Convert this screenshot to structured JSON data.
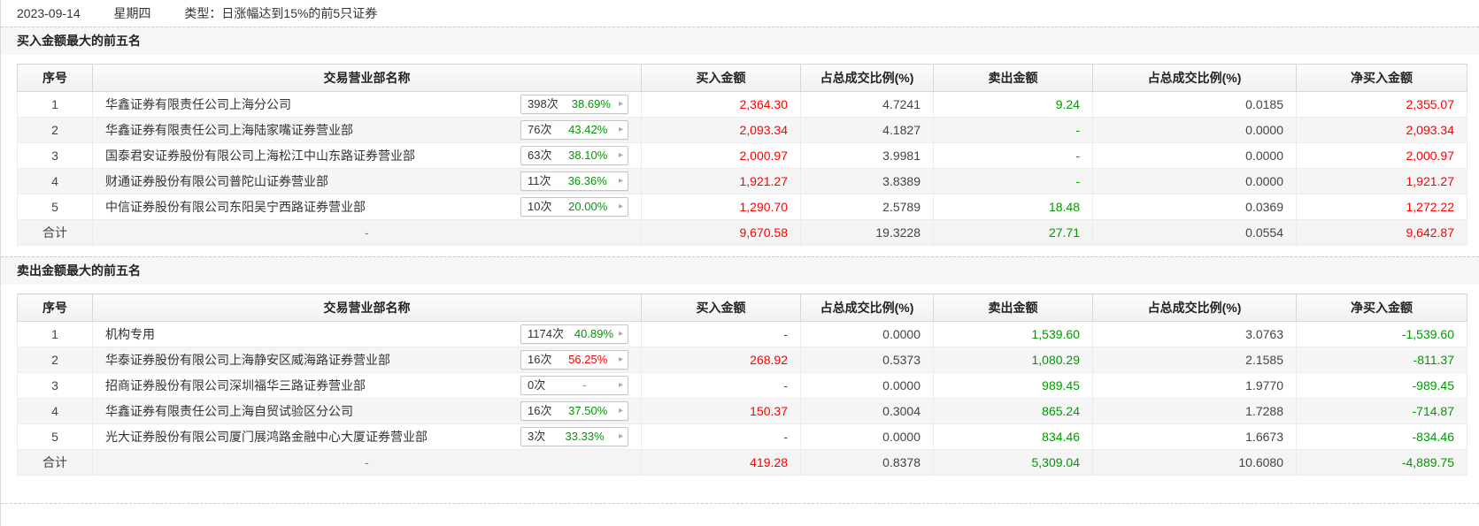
{
  "topbar": {
    "date": "2023-09-14",
    "weekday": "星期四",
    "type_text": "类型：日涨幅达到15%的前5只证券"
  },
  "columns": [
    "序号",
    "交易营业部名称",
    "买入金额",
    "占总成交比例(%)",
    "卖出金额",
    "占总成交比例(%)",
    "净买入金额"
  ],
  "total_label": "合计",
  "badge_arrow_icon": "▸",
  "colors": {
    "red": "#ff0000",
    "green": "#009900",
    "dark": "#444444",
    "gray": "#888888"
  },
  "tables": [
    {
      "title": "买入金额最大的前五名",
      "rows": [
        {
          "rank": "1",
          "name": "华鑫证券有限责任公司上海分公司",
          "count": "398次",
          "rate": "38.69%",
          "rate_color": "green",
          "values": [
            {
              "text": "2,364.30",
              "color": "red"
            },
            {
              "text": "4.7241",
              "color": "dark"
            },
            {
              "text": "9.24",
              "color": "green"
            },
            {
              "text": "0.0185",
              "color": "dark"
            },
            {
              "text": "2,355.07",
              "color": "red"
            }
          ]
        },
        {
          "rank": "2",
          "name": "华鑫证券有限责任公司上海陆家嘴证券营业部",
          "count": "76次",
          "rate": "43.42%",
          "rate_color": "green",
          "values": [
            {
              "text": "2,093.34",
              "color": "red"
            },
            {
              "text": "4.1827",
              "color": "dark"
            },
            {
              "text": "-",
              "color": "green"
            },
            {
              "text": "0.0000",
              "color": "dark"
            },
            {
              "text": "2,093.34",
              "color": "red"
            }
          ]
        },
        {
          "rank": "3",
          "name": "国泰君安证券股份有限公司上海松江中山东路证券营业部",
          "count": "63次",
          "rate": "38.10%",
          "rate_color": "green",
          "values": [
            {
              "text": "2,000.97",
              "color": "red"
            },
            {
              "text": "3.9981",
              "color": "dark"
            },
            {
              "text": "-",
              "color": "green"
            },
            {
              "text": "0.0000",
              "color": "dark"
            },
            {
              "text": "2,000.97",
              "color": "red"
            }
          ]
        },
        {
          "rank": "4",
          "name": "财通证券股份有限公司普陀山证券营业部",
          "count": "11次",
          "rate": "36.36%",
          "rate_color": "green",
          "values": [
            {
              "text": "1,921.27",
              "color": "red"
            },
            {
              "text": "3.8389",
              "color": "dark"
            },
            {
              "text": "-",
              "color": "green"
            },
            {
              "text": "0.0000",
              "color": "dark"
            },
            {
              "text": "1,921.27",
              "color": "red"
            }
          ]
        },
        {
          "rank": "5",
          "name": "中信证券股份有限公司东阳吴宁西路证券营业部",
          "count": "10次",
          "rate": "20.00%",
          "rate_color": "green",
          "values": [
            {
              "text": "1,290.70",
              "color": "red"
            },
            {
              "text": "2.5789",
              "color": "dark"
            },
            {
              "text": "18.48",
              "color": "green"
            },
            {
              "text": "0.0369",
              "color": "dark"
            },
            {
              "text": "1,272.22",
              "color": "red"
            }
          ]
        }
      ],
      "total": {
        "name": "-",
        "values": [
          {
            "text": "9,670.58",
            "color": "red"
          },
          {
            "text": "19.3228",
            "color": "dark"
          },
          {
            "text": "27.71",
            "color": "green"
          },
          {
            "text": "0.0554",
            "color": "dark"
          },
          {
            "text": "9,642.87",
            "color": "red"
          }
        ]
      }
    },
    {
      "title": "卖出金额最大的前五名",
      "rows": [
        {
          "rank": "1",
          "name": "机构专用",
          "count": "1174次",
          "rate": "40.89%",
          "rate_color": "green",
          "values": [
            {
              "text": "-",
              "color": "red"
            },
            {
              "text": "0.0000",
              "color": "dark"
            },
            {
              "text": "1,539.60",
              "color": "green"
            },
            {
              "text": "3.0763",
              "color": "dark"
            },
            {
              "text": "-1,539.60",
              "color": "green"
            }
          ]
        },
        {
          "rank": "2",
          "name": "华泰证券股份有限公司上海静安区威海路证券营业部",
          "count": "16次",
          "rate": "56.25%",
          "rate_color": "red",
          "values": [
            {
              "text": "268.92",
              "color": "red"
            },
            {
              "text": "0.5373",
              "color": "dark"
            },
            {
              "text": "1,080.29",
              "color": "green"
            },
            {
              "text": "2.1585",
              "color": "dark"
            },
            {
              "text": "-811.37",
              "color": "green"
            }
          ]
        },
        {
          "rank": "3",
          "name": "招商证券股份有限公司深圳福华三路证券营业部",
          "count": "0次",
          "rate": "-",
          "rate_color": "gray",
          "values": [
            {
              "text": "-",
              "color": "red"
            },
            {
              "text": "0.0000",
              "color": "dark"
            },
            {
              "text": "989.45",
              "color": "green"
            },
            {
              "text": "1.9770",
              "color": "dark"
            },
            {
              "text": "-989.45",
              "color": "green"
            }
          ]
        },
        {
          "rank": "4",
          "name": "华鑫证券有限责任公司上海自贸试验区分公司",
          "count": "16次",
          "rate": "37.50%",
          "rate_color": "green",
          "values": [
            {
              "text": "150.37",
              "color": "red"
            },
            {
              "text": "0.3004",
              "color": "dark"
            },
            {
              "text": "865.24",
              "color": "green"
            },
            {
              "text": "1.7288",
              "color": "dark"
            },
            {
              "text": "-714.87",
              "color": "green"
            }
          ]
        },
        {
          "rank": "5",
          "name": "光大证券股份有限公司厦门展鸿路金融中心大厦证券营业部",
          "count": "3次",
          "rate": "33.33%",
          "rate_color": "green",
          "values": [
            {
              "text": "-",
              "color": "red"
            },
            {
              "text": "0.0000",
              "color": "dark"
            },
            {
              "text": "834.46",
              "color": "green"
            },
            {
              "text": "1.6673",
              "color": "dark"
            },
            {
              "text": "-834.46",
              "color": "green"
            }
          ]
        }
      ],
      "total": {
        "name": "-",
        "values": [
          {
            "text": "419.28",
            "color": "red"
          },
          {
            "text": "0.8378",
            "color": "dark"
          },
          {
            "text": "5,309.04",
            "color": "green"
          },
          {
            "text": "10.6080",
            "color": "dark"
          },
          {
            "text": "-4,889.75",
            "color": "green"
          }
        ]
      }
    }
  ]
}
